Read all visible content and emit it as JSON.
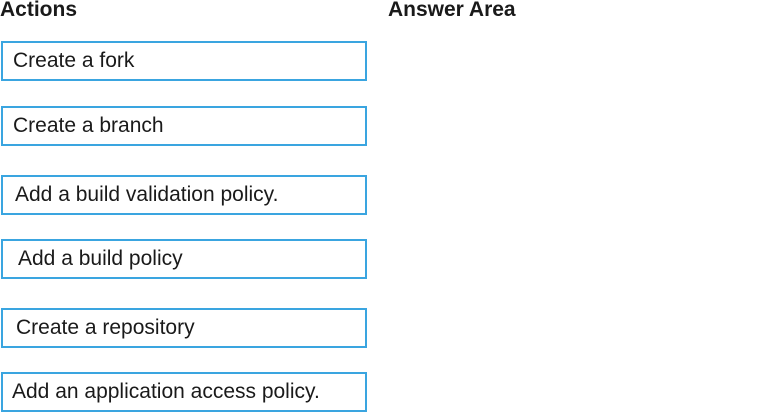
{
  "headings": {
    "actions": "Actions",
    "answer_area": "Answer Area"
  },
  "actions": [
    {
      "label": "Create a fork"
    },
    {
      "label": "Create a branch"
    },
    {
      "label": "Add a build validation policy."
    },
    {
      "label": "Add a build policy"
    },
    {
      "label": "Create a repository"
    },
    {
      "label": "Add an application access policy."
    }
  ],
  "colors": {
    "box_border": "#3aa5e0"
  }
}
